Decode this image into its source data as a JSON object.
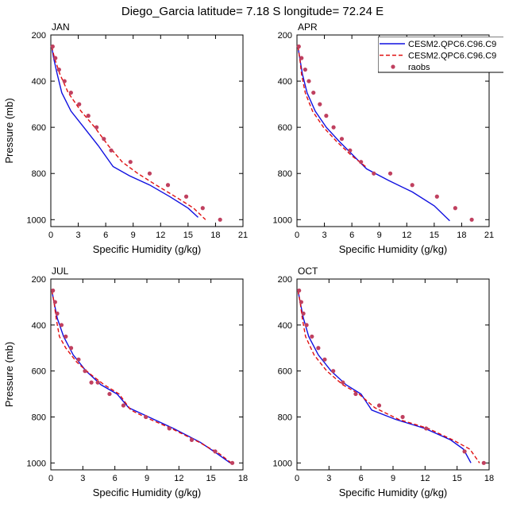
{
  "figure": {
    "title": "Diego_Garcia  latitude= 7.18 S longitude= 72.24 E"
  },
  "chart_data": [
    {
      "type": "line",
      "panel": "JAN",
      "xlabel": "Specific Humidity (g/kg)",
      "ylabel": "Pressure (mb)",
      "xlim": [
        0,
        21
      ],
      "xticks": [
        0,
        3,
        6,
        9,
        12,
        15,
        18,
        21
      ],
      "ylim": [
        200,
        1030
      ],
      "yticks": [
        200,
        400,
        600,
        800,
        1000
      ],
      "y_inverted": true,
      "series": [
        {
          "name": "CESM2.QPC6.C96.C9",
          "style": "solid",
          "color": "#1010e0",
          "x": [
            0.1,
            0.3,
            0.7,
            1.2,
            2.2,
            3.6,
            5.2,
            6.8,
            8.6,
            10.8,
            13.0,
            15.0,
            16.1
          ],
          "y": [
            250,
            300,
            370,
            450,
            530,
            600,
            680,
            770,
            810,
            850,
            900,
            950,
            990
          ]
        },
        {
          "name": "CESM2.QPC6.C96.C9",
          "style": "dashed",
          "color": "#e01010",
          "x": [
            0.1,
            0.4,
            1.0,
            1.9,
            3.3,
            4.8,
            6.3,
            7.8,
            9.5,
            11.5,
            13.6,
            15.6,
            16.9
          ],
          "y": [
            250,
            300,
            370,
            450,
            530,
            600,
            680,
            750,
            800,
            850,
            900,
            950,
            1000
          ]
        },
        {
          "name": "raobs",
          "style": "markers",
          "color": "#c0405f",
          "x": [
            0.2,
            0.5,
            0.9,
            1.5,
            2.2,
            3.1,
            4.1,
            5.0,
            5.8,
            6.6,
            8.7,
            10.8,
            12.8,
            14.8,
            16.6,
            18.5
          ],
          "y": [
            250,
            300,
            350,
            400,
            450,
            500,
            550,
            600,
            650,
            700,
            750,
            800,
            850,
            900,
            950,
            1000
          ]
        }
      ]
    },
    {
      "type": "line",
      "panel": "APR",
      "xlabel": "Specific Humidity (g/kg)",
      "ylabel": "",
      "xlim": [
        0,
        21
      ],
      "xticks": [
        0,
        3,
        6,
        9,
        12,
        15,
        18,
        21
      ],
      "ylim": [
        200,
        1030
      ],
      "yticks": [
        200,
        400,
        600,
        800,
        1000
      ],
      "y_inverted": true,
      "legend_position": "top-right",
      "series": [
        {
          "name": "CESM2.QPC6.C96.C9",
          "style": "solid",
          "color": "#1010e0",
          "x": [
            0.1,
            0.3,
            0.6,
            1.1,
            2.0,
            3.2,
            4.6,
            6.1,
            7.6,
            10.0,
            12.6,
            15.0,
            16.7
          ],
          "y": [
            250,
            300,
            370,
            450,
            530,
            600,
            660,
            720,
            780,
            830,
            880,
            940,
            1005
          ]
        },
        {
          "name": "CESM2.QPC6.C96.C9",
          "style": "dashed",
          "color": "#e01010",
          "x": [
            0.1,
            0.3,
            0.5,
            0.9,
            1.7,
            2.9,
            4.3,
            5.9,
            7.5
          ],
          "y": [
            250,
            300,
            370,
            450,
            530,
            600,
            660,
            720,
            770
          ]
        },
        {
          "name": "raobs",
          "style": "markers",
          "color": "#c0405f",
          "x": [
            0.2,
            0.5,
            0.9,
            1.3,
            1.8,
            2.5,
            3.2,
            4.0,
            4.9,
            5.8,
            7.0,
            8.4,
            10.2,
            12.6,
            15.3,
            17.3,
            19.1
          ],
          "y": [
            250,
            300,
            350,
            400,
            450,
            500,
            550,
            600,
            650,
            700,
            750,
            800,
            800,
            850,
            900,
            950,
            1000
          ]
        }
      ]
    },
    {
      "type": "line",
      "panel": "JUL",
      "xlabel": "Specific Humidity (g/kg)",
      "ylabel": "Pressure (mb)",
      "xlim": [
        0,
        18
      ],
      "xticks": [
        0,
        3,
        6,
        9,
        12,
        15,
        18
      ],
      "ylim": [
        200,
        1030
      ],
      "yticks": [
        200,
        400,
        600,
        800,
        1000
      ],
      "y_inverted": true,
      "series": [
        {
          "name": "CESM2.QPC6.C96.C9",
          "style": "solid",
          "color": "#1010e0",
          "x": [
            0.1,
            0.3,
            0.6,
            1.2,
            2.1,
            3.3,
            4.7,
            6.2,
            7.3,
            8.7,
            11.5,
            14.0,
            15.6,
            16.8
          ],
          "y": [
            250,
            300,
            370,
            450,
            530,
            600,
            660,
            700,
            760,
            790,
            850,
            910,
            960,
            1000
          ]
        },
        {
          "name": "CESM2.QPC6.C96.C9",
          "style": "dashed",
          "color": "#e01010",
          "x": [
            0.1,
            0.3,
            0.5,
            0.8,
            1.4,
            2.4,
            3.6,
            5.0,
            6.4,
            7.5,
            8.8,
            11.3,
            13.9,
            15.8,
            16.9
          ],
          "y": [
            250,
            300,
            370,
            450,
            500,
            560,
            610,
            660,
            700,
            770,
            800,
            850,
            910,
            960,
            1000
          ]
        },
        {
          "name": "raobs",
          "style": "markers",
          "color": "#c0405f",
          "x": [
            0.2,
            0.4,
            0.6,
            1.0,
            1.4,
            1.9,
            2.6,
            3.2,
            3.8,
            4.4,
            5.5,
            6.8,
            8.9,
            11.1,
            13.2,
            15.4,
            17.0
          ],
          "y": [
            250,
            300,
            350,
            400,
            450,
            500,
            550,
            600,
            650,
            650,
            700,
            750,
            800,
            850,
            900,
            950,
            1000
          ]
        }
      ]
    },
    {
      "type": "line",
      "panel": "OCT",
      "xlabel": "Specific Humidity (g/kg)",
      "ylabel": "",
      "xlim": [
        0,
        18
      ],
      "xticks": [
        0,
        3,
        6,
        9,
        12,
        15,
        18
      ],
      "ylim": [
        200,
        1030
      ],
      "yticks": [
        200,
        400,
        600,
        800,
        1000
      ],
      "y_inverted": true,
      "series": [
        {
          "name": "CESM2.QPC6.C96.C9",
          "style": "solid",
          "color": "#1010e0",
          "x": [
            0.1,
            0.3,
            0.6,
            1.1,
            2.0,
            3.2,
            4.6,
            6.0,
            7.0,
            9.2,
            12.0,
            14.4,
            15.6,
            16.3
          ],
          "y": [
            250,
            300,
            370,
            450,
            530,
            600,
            660,
            700,
            770,
            810,
            850,
            900,
            940,
            1000
          ]
        },
        {
          "name": "CESM2.QPC6.C96.C9",
          "style": "dashed",
          "color": "#e01010",
          "x": [
            0.1,
            0.3,
            0.5,
            0.8,
            1.6,
            2.8,
            4.3,
            5.8,
            7.3,
            9.5,
            12.3,
            14.6,
            16.2,
            17.1
          ],
          "y": [
            250,
            300,
            370,
            450,
            530,
            600,
            660,
            700,
            760,
            810,
            850,
            900,
            940,
            1000
          ]
        },
        {
          "name": "raobs",
          "style": "markers",
          "color": "#c0405f",
          "x": [
            0.2,
            0.4,
            0.6,
            0.9,
            1.4,
            2.0,
            2.6,
            3.4,
            4.3,
            5.5,
            7.7,
            9.9,
            12.1,
            15.7,
            17.5
          ],
          "y": [
            250,
            300,
            350,
            400,
            450,
            500,
            550,
            600,
            650,
            700,
            750,
            800,
            850,
            950,
            1000
          ]
        }
      ]
    }
  ],
  "legend": {
    "entries": [
      {
        "label": "CESM2.QPC6.C96.C9",
        "style": "solid",
        "color": "#1010e0"
      },
      {
        "label": "CESM2.QPC6.C96.C9",
        "style": "dashed",
        "color": "#e01010"
      },
      {
        "label": "raobs",
        "style": "markers",
        "color": "#c0405f"
      }
    ]
  }
}
